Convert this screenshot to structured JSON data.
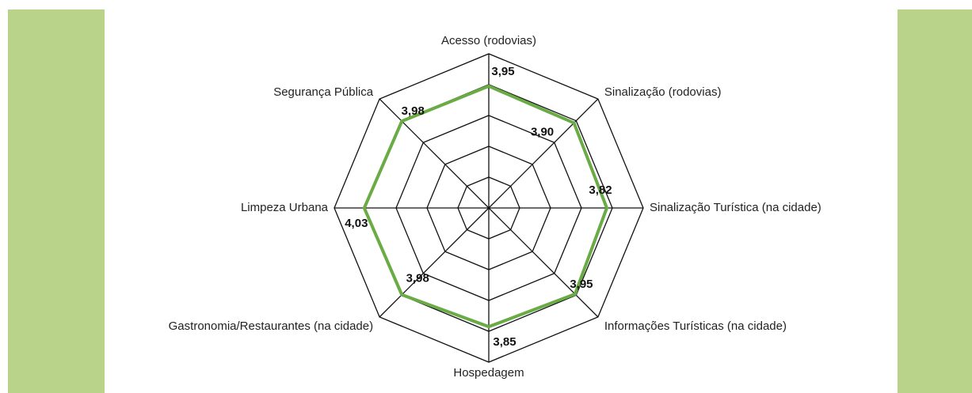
{
  "chart_data": {
    "type": "radar",
    "categories": [
      "Acesso (rodovias)",
      "Sinalização (rodovias)",
      "Sinalização Turística (na cidade)",
      "Informações Turísticas (na cidade)",
      "Hospedagem",
      "Gastronomia/Restaurantes (na cidade)",
      "Limpeza Urbana",
      "Segurança Pública"
    ],
    "values": [
      3.95,
      3.9,
      3.82,
      3.95,
      3.85,
      3.98,
      4.03,
      3.98
    ],
    "value_labels": [
      "3,95",
      "3,90",
      "3,82",
      "3,95",
      "3,85",
      "3,98",
      "4,03",
      "3,98"
    ],
    "color": "#6aab45",
    "ylim": [
      0,
      5
    ],
    "yticks": [
      1,
      2,
      3,
      4,
      5
    ],
    "grid": true
  }
}
